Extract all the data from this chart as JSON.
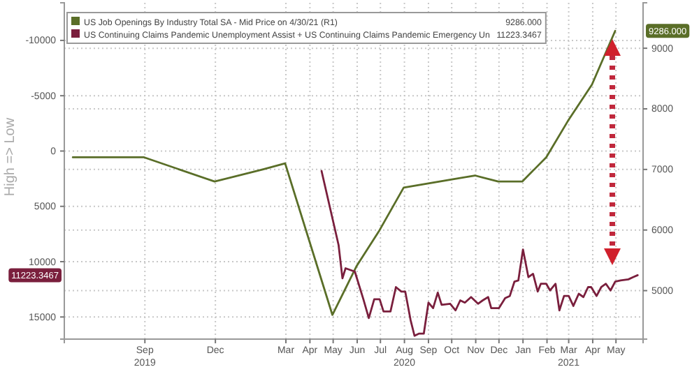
{
  "chart_data": {
    "type": "line",
    "ylabel": "High => Low",
    "legend": "top left",
    "grid": true,
    "line_style": "solid",
    "marker": "none",
    "xlim": [
      "2019-05-20",
      "2021-06-05"
    ],
    "xticks": [
      {
        "value": "2019-09-01",
        "label": "Sep\n2019"
      },
      {
        "value": "2019-12-01",
        "label": "Dec"
      },
      {
        "value": "2020-03-01",
        "label": "Mar"
      },
      {
        "value": "2020-04-01",
        "label": "Apr"
      },
      {
        "value": "2020-05-01",
        "label": "May"
      },
      {
        "value": "2020-06-01",
        "label": "Jun"
      },
      {
        "value": "2020-07-01",
        "label": "Jul"
      },
      {
        "value": "2020-08-01",
        "label": "Aug\n2020"
      },
      {
        "value": "2020-09-01",
        "label": "Sep"
      },
      {
        "value": "2020-10-01",
        "label": "Oct"
      },
      {
        "value": "2020-11-01",
        "label": "Nov"
      },
      {
        "value": "2020-12-01",
        "label": "Dec"
      },
      {
        "value": "2021-01-01",
        "label": "Jan"
      },
      {
        "value": "2021-02-01",
        "label": "Feb"
      },
      {
        "value": "2021-03-01",
        "label": "Mar\n2021"
      },
      {
        "value": "2021-04-01",
        "label": "Apr"
      },
      {
        "value": "2021-05-01",
        "label": "May"
      }
    ],
    "ylim": [
      17000,
      -13400
    ],
    "yticks": [
      -10000,
      -5000,
      0,
      5000,
      10000,
      15000
    ],
    "y2lim": [
      4200,
      9750
    ],
    "y2ticks": [
      5000,
      6000,
      7000,
      8000,
      9000
    ],
    "series": [
      {
        "name": "US Job Openings By Industry Total SA - Mid Price on 4/30/21 (R1)",
        "color": "#5a6e28",
        "axis": "y2",
        "x": [
          "2019-05-31",
          "2019-08-31",
          "2019-11-30",
          "2020-01-31",
          "2020-02-29",
          "2020-04-30",
          "2020-05-31",
          "2020-06-30",
          "2020-07-31",
          "2020-10-31",
          "2020-11-30",
          "2020-12-31",
          "2021-01-31",
          "2021-02-28",
          "2021-03-31",
          "2021-04-30"
        ],
        "values": [
          7200,
          7200,
          6800,
          7000,
          7100,
          4600,
          5400,
          6000,
          6700,
          6900,
          6800,
          6800,
          7200,
          7800,
          8400,
          9286
        ]
      },
      {
        "name": "US Continuing Claims Pandemic Unemployment Assist + US Continuing Claims Pandemic Emergency Un",
        "color": "#7a1f3d",
        "x": [
          "2020-04-16",
          "2020-05-08",
          "2020-05-13",
          "2020-05-17",
          "2020-05-29",
          "2020-06-09",
          "2020-06-16",
          "2020-06-23",
          "2020-06-30",
          "2020-07-05",
          "2020-07-14",
          "2020-07-21",
          "2020-07-28",
          "2020-08-02",
          "2020-08-09",
          "2020-08-14",
          "2020-08-20",
          "2020-08-26",
          "2020-09-01",
          "2020-09-07",
          "2020-09-13",
          "2020-09-18",
          "2020-09-29",
          "2020-10-06",
          "2020-10-12",
          "2020-10-18",
          "2020-10-26",
          "2020-11-04",
          "2020-11-10",
          "2020-11-17",
          "2020-11-21",
          "2020-12-01",
          "2020-12-09",
          "2020-12-15",
          "2020-12-21",
          "2020-12-26",
          "2021-01-01",
          "2021-01-08",
          "2021-01-14",
          "2021-01-20",
          "2021-01-24",
          "2021-01-31",
          "2021-02-05",
          "2021-02-12",
          "2021-02-17",
          "2021-02-23",
          "2021-03-01",
          "2021-03-07",
          "2021-03-14",
          "2021-03-20",
          "2021-03-26",
          "2021-03-30",
          "2021-04-06",
          "2021-04-12",
          "2021-04-18",
          "2021-04-24",
          "2021-04-30",
          "2021-05-07",
          "2021-05-17",
          "2021-05-23",
          "2021-05-29"
        ],
        "values": [
          1800,
          8500,
          11500,
          10600,
          10900,
          13400,
          15100,
          13400,
          13400,
          14500,
          14500,
          12300,
          12700,
          12700,
          15300,
          16700,
          16500,
          16500,
          13700,
          14200,
          12800,
          13900,
          13800,
          14400,
          13500,
          13700,
          13200,
          13800,
          13500,
          13200,
          14200,
          14200,
          13300,
          13100,
          11800,
          11700,
          8900,
          11400,
          11100,
          12700,
          12000,
          12000,
          12600,
          12000,
          14400,
          13100,
          13100,
          14000,
          12900,
          13200,
          12300,
          12300,
          13100,
          12300,
          12000,
          12600,
          11800,
          11700,
          11600,
          11400,
          11223.3467
        ]
      }
    ],
    "annotations": [
      "9286.000",
      "11223.3467"
    ]
  }
}
